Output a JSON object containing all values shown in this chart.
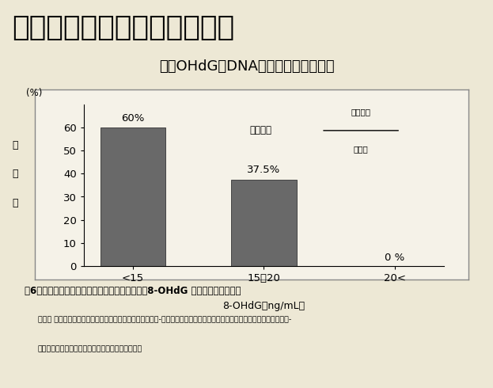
{
  "title1": "卵胞液内の「酸化」と受精率",
  "title2": "８－OHdG：DNAの酸化損傷マーカー",
  "categories": [
    "<15",
    "15〜20",
    "20<"
  ],
  "values": [
    60,
    37.5,
    0
  ],
  "bar_labels": [
    "60%",
    "37.5%",
    "0 %"
  ],
  "xlabel": "8-OHdG（ng/mL）",
  "ylabel_chars": [
    "受",
    "精",
    "率"
  ],
  "ylim": [
    0,
    70
  ],
  "yticks": [
    0,
    10,
    20,
    30,
    40,
    50,
    60
  ],
  "bar_color": "#696969",
  "bg_color": "#ede8d5",
  "chart_bg": "#f5f2e8",
  "formula_text": "受精率＝",
  "formula_num": "受精卵数",
  "formula_den": "採卵数",
  "fig_caption": "囶6．　体外受精胚移植患者における卵胞液中の8-OHdG 濃度と受精率の関係",
  "footnote1": "「田村 博史ら：排卵過程におけるメラトニンの防御的役割-メラトニンは卵胞内で卵と題粒膜細胞を酸化ストレスから護る-",
  "footnote2": "　山口大学大学院医学系研究科産科婦人科学講座」"
}
